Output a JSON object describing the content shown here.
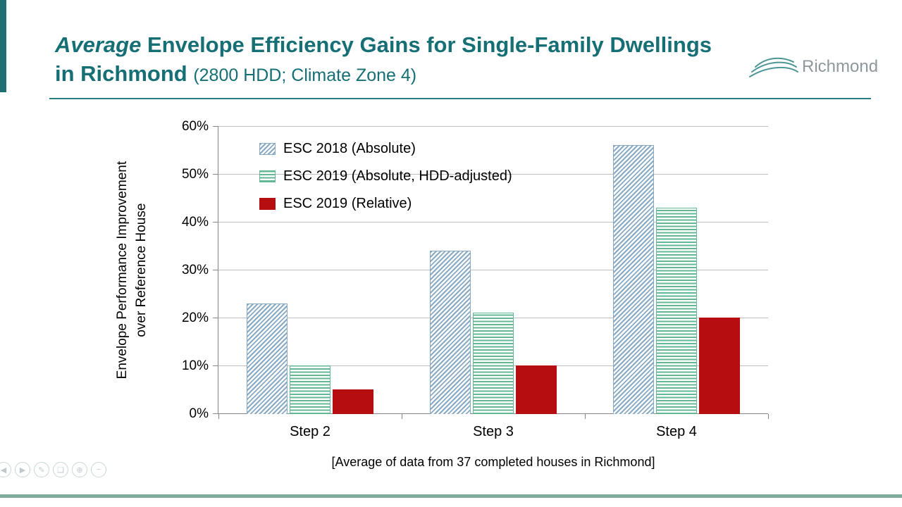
{
  "header": {
    "title_emphasis": "Average",
    "title_rest": " Envelope Efficiency Gains for Single-Family Dwellings",
    "title_line2": "in Richmond ",
    "title_subtitle": "(2800 HDD; Climate Zone 4)",
    "accent_color": "#156f74",
    "logo_text": "Richmond"
  },
  "chart_data": {
    "type": "bar",
    "title": "Average Envelope Efficiency Gains for Single-Family Dwellings in Richmond (2800 HDD; Climate Zone 4)",
    "categories": [
      "Step 2",
      "Step 3",
      "Step 4"
    ],
    "series": [
      {
        "name": "ESC 2018 (Absolute)",
        "values": [
          23,
          34,
          56
        ],
        "fill": "hatch-diagonal",
        "color": "#88a9c3"
      },
      {
        "name": "ESC 2019 (Absolute, HDD-adjusted)",
        "values": [
          10,
          21,
          43
        ],
        "fill": "hatch-horizontal",
        "color": "#63b893"
      },
      {
        "name": "ESC 2019 (Relative)",
        "values": [
          5,
          10,
          20
        ],
        "fill": "solid",
        "color": "#b50d10"
      }
    ],
    "ylabel_line1": "Envelope Performance Improvement",
    "ylabel_line2": "over Reference House",
    "ylim": [
      0,
      60
    ],
    "yticks": [
      0,
      10,
      20,
      30,
      40,
      50,
      60
    ],
    "ytick_suffix": "%",
    "grid": true,
    "legend_position": "inside-top-left"
  },
  "caption": "[Average of data from 37 completed houses in Richmond]",
  "player_controls": [
    {
      "name": "previous",
      "glyph": "◀"
    },
    {
      "name": "play",
      "glyph": "▶"
    },
    {
      "name": "edit",
      "glyph": "✎"
    },
    {
      "name": "print",
      "glyph": "❏"
    },
    {
      "name": "zoom",
      "glyph": "⊕"
    },
    {
      "name": "minimize",
      "glyph": "−"
    }
  ]
}
